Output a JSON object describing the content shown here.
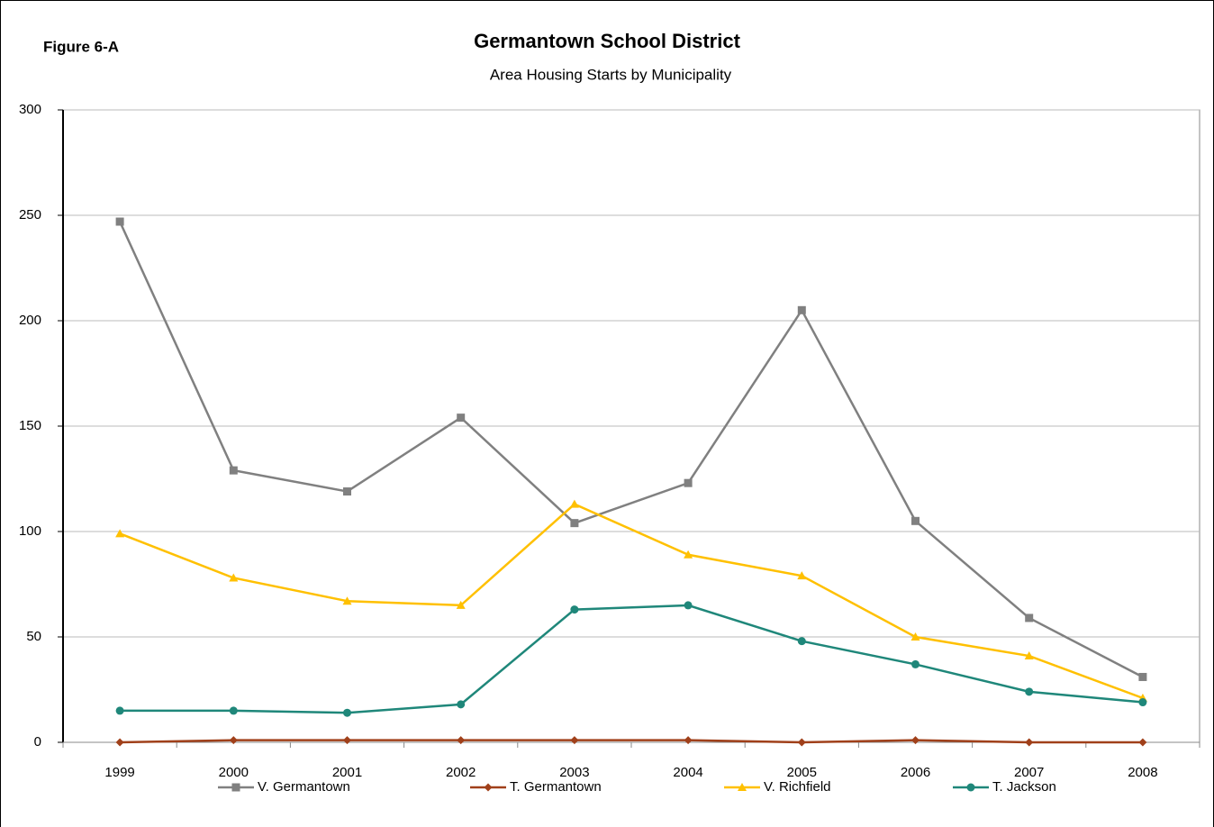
{
  "chart_data": {
    "type": "line",
    "figure_label": "Figure 6-A",
    "title": "Germantown School District",
    "subtitle": "Area Housing Starts by Municipality",
    "categories": [
      "1999",
      "2000",
      "2001",
      "2002",
      "2003",
      "2004",
      "2005",
      "2006",
      "2007",
      "2008"
    ],
    "series": [
      {
        "name": "V. Germantown",
        "color": "#808080",
        "marker": "square",
        "values": [
          247,
          129,
          119,
          154,
          104,
          123,
          205,
          105,
          59,
          31
        ]
      },
      {
        "name": "T. Germantown",
        "color": "#a0401a",
        "marker": "diamond",
        "values": [
          0,
          1,
          1,
          1,
          1,
          1,
          0,
          1,
          0,
          0
        ]
      },
      {
        "name": "V. Richfield",
        "color": "#ffc000",
        "marker": "triangle",
        "values": [
          99,
          78,
          67,
          65,
          113,
          89,
          79,
          50,
          41,
          21
        ]
      },
      {
        "name": "T. Jackson",
        "color": "#1f877a",
        "marker": "circle",
        "values": [
          15,
          15,
          14,
          18,
          63,
          65,
          48,
          37,
          24,
          19
        ]
      }
    ],
    "ylim": [
      0,
      300
    ],
    "yticks": [
      0,
      50,
      100,
      150,
      200,
      250,
      300
    ],
    "grid": true,
    "legend": "bottom"
  }
}
